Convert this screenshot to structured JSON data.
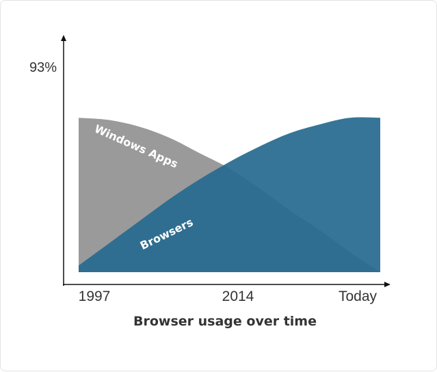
{
  "chart_data": {
    "type": "area",
    "title": "Browser usage over time",
    "xlabel": "",
    "ylabel": "",
    "x_ticks": [
      "1997",
      "2014",
      "Today"
    ],
    "y_ticks": [
      "93%"
    ],
    "x": [
      0,
      10,
      20,
      30,
      40,
      50,
      60,
      70,
      80,
      90,
      100
    ],
    "ylim": [
      0,
      93
    ],
    "series": [
      {
        "name": "Windows Apps",
        "color": "#9a9a9a",
        "values": [
          70,
          69,
          66,
          61,
          54,
          47,
          38,
          28,
          19,
          9,
          0
        ]
      },
      {
        "name": "Browsers",
        "color": "#276a8f",
        "values": [
          3,
          13,
          23,
          33,
          42,
          50,
          57,
          63,
          67,
          70,
          70
        ]
      }
    ],
    "grid": false,
    "legend": "inline"
  }
}
